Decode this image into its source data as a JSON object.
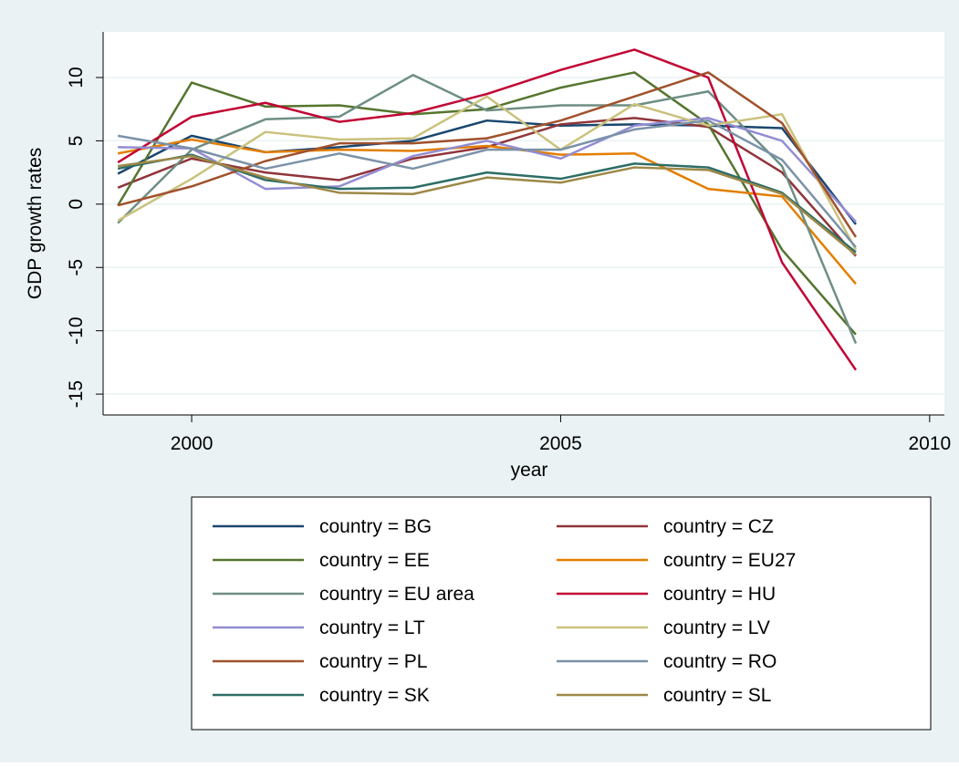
{
  "chart_data": {
    "type": "line",
    "x_label": "year",
    "y_label": "GDP growth rates",
    "x": [
      1999,
      2000,
      2001,
      2002,
      2003,
      2004,
      2005,
      2006,
      2007,
      2008,
      2009
    ],
    "xlim": [
      1998.8,
      2010.2
    ],
    "xticks": [
      2000,
      2005,
      2010
    ],
    "ylim": [
      -16.65,
      13.6
    ],
    "yticks": [
      10,
      5,
      0,
      -5,
      -10,
      -15
    ],
    "grid": true,
    "legend_position": "bottom",
    "series": [
      {
        "name": "country = BG",
        "color": "#1a476f",
        "values": [
          2.4,
          5.4,
          4.1,
          4.5,
          5.0,
          6.6,
          6.2,
          6.3,
          6.2,
          6.0,
          -1.6
        ]
      },
      {
        "name": "country = CZ",
        "color": "#90353b",
        "values": [
          1.3,
          3.6,
          2.5,
          1.9,
          3.6,
          4.5,
          6.3,
          6.8,
          6.1,
          2.5,
          -4.1
        ]
      },
      {
        "name": "country = EE",
        "color": "#55752f",
        "values": [
          -0.1,
          9.6,
          7.7,
          7.8,
          7.1,
          7.5,
          9.2,
          10.4,
          6.3,
          -3.6,
          -10.3
        ]
      },
      {
        "name": "country = EU27",
        "color": "#e37e00",
        "values": [
          4.0,
          5.1,
          4.1,
          4.3,
          4.2,
          4.6,
          3.9,
          4.0,
          1.2,
          0.6,
          -6.3
        ]
      },
      {
        "name": "country = EU area",
        "color": "#6e8e84",
        "values": [
          -1.5,
          4.3,
          6.7,
          6.9,
          10.2,
          7.4,
          7.8,
          7.8,
          8.9,
          3.0,
          -11.0
        ]
      },
      {
        "name": "country = HU",
        "color": "#c10534",
        "values": [
          3.3,
          6.9,
          8.0,
          6.5,
          7.2,
          8.7,
          10.6,
          12.2,
          10.0,
          -4.6,
          -13.1
        ]
      },
      {
        "name": "country = LT",
        "color": "#938dd2",
        "values": [
          4.5,
          4.4,
          1.2,
          1.4,
          3.8,
          5.0,
          3.6,
          6.2,
          6.8,
          5.0,
          -1.4
        ]
      },
      {
        "name": "country = LV",
        "color": "#cac27e",
        "values": [
          -1.3,
          2.0,
          5.7,
          5.1,
          5.2,
          8.5,
          4.3,
          7.9,
          6.2,
          7.1,
          -3.6
        ]
      },
      {
        "name": "country = PL",
        "color": "#a0522d",
        "values": [
          -0.1,
          1.4,
          3.4,
          4.8,
          4.8,
          5.2,
          6.6,
          8.5,
          10.4,
          6.4,
          -2.6
        ]
      },
      {
        "name": "country = RO",
        "color": "#7b92a8",
        "values": [
          5.4,
          4.4,
          2.8,
          4.0,
          2.8,
          4.3,
          4.3,
          5.9,
          6.6,
          3.5,
          -3.4
        ]
      },
      {
        "name": "country = SK",
        "color": "#2d6d66",
        "values": [
          2.8,
          3.9,
          1.9,
          1.2,
          1.3,
          2.5,
          2.0,
          3.2,
          2.9,
          0.9,
          -3.8
        ]
      },
      {
        "name": "country = SL",
        "color": "#9c8847",
        "values": [
          3.0,
          3.8,
          2.1,
          0.9,
          0.8,
          2.1,
          1.7,
          2.9,
          2.7,
          0.8,
          -4.0
        ]
      }
    ]
  }
}
